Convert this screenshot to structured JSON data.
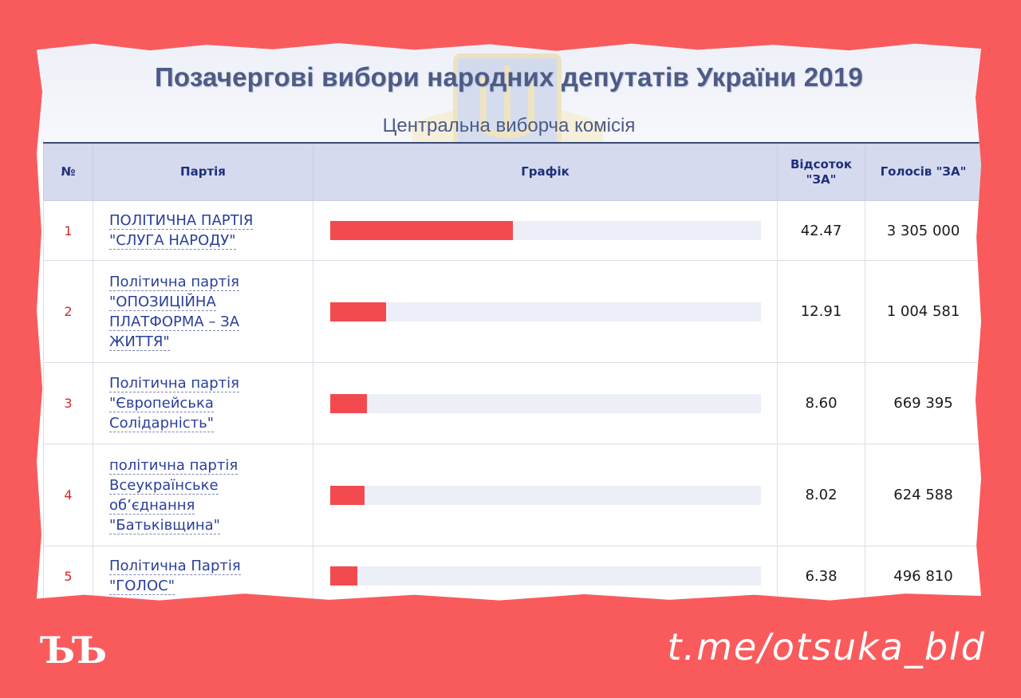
{
  "header": {
    "title": "Позачергові вибори народних депутатів України 2019",
    "subtitle": "Центральна виборча комісія"
  },
  "table": {
    "columns": {
      "num": "№",
      "party": "Партія",
      "chart": "Графік",
      "percent": "Відсоток \"ЗА\"",
      "votes": "Голосів \"ЗА\""
    },
    "rows": [
      {
        "num": "1",
        "party": "ПОЛІТИЧНА ПАРТІЯ \"СЛУГА НАРОДУ\"",
        "percent": "42.47",
        "votes": "3 305 000",
        "bar_percent": 42.47
      },
      {
        "num": "2",
        "party": "Політична партія \"ОПОЗИЦІЙНА ПЛАТФОРМА – ЗА ЖИТТЯ\"",
        "percent": "12.91",
        "votes": "1 004 581",
        "bar_percent": 12.91
      },
      {
        "num": "3",
        "party": "Політична партія \"Європейська Солідарність\"",
        "percent": "8.60",
        "votes": "669 395",
        "bar_percent": 8.6
      },
      {
        "num": "4",
        "party": "політична партія Всеукраїнське об’єднання \"Батьківщина\"",
        "percent": "8.02",
        "votes": "624 588",
        "bar_percent": 8.02
      },
      {
        "num": "5",
        "party": "Політична Партія \"ГОЛОС\"",
        "percent": "6.38",
        "votes": "496 810",
        "bar_percent": 6.38
      }
    ]
  },
  "footer": {
    "logo": "ЪЪ",
    "channel": "t.me/otsuka_bld"
  },
  "colors": {
    "background": "#f95b5d",
    "bar": "#f34a4f",
    "header_text": "#4d5b86",
    "party_link": "#2a3f9a"
  }
}
